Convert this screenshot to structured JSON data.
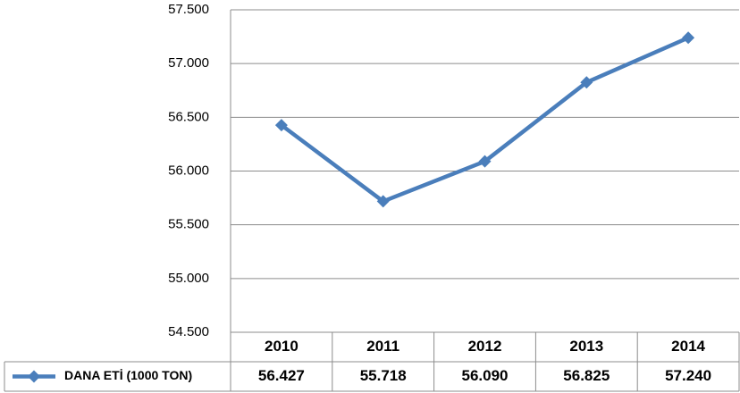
{
  "chart_data": {
    "type": "line",
    "categories": [
      "2010",
      "2011",
      "2012",
      "2013",
      "2014"
    ],
    "series": [
      {
        "name": "DANA ETİ (1000 TON)",
        "color": "#4a7ebb",
        "values": [
          56427,
          55718,
          56090,
          56825,
          57240
        ],
        "value_labels": [
          "56.427",
          "55.718",
          "56.090",
          "56.825",
          "57.240"
        ]
      }
    ],
    "ylim": [
      54500,
      57500
    ],
    "yticks": [
      {
        "value": 54500,
        "label": "54.500"
      },
      {
        "value": 55000,
        "label": "55.000"
      },
      {
        "value": 55500,
        "label": "55.500"
      },
      {
        "value": 56000,
        "label": "56.000"
      },
      {
        "value": 56500,
        "label": "56.500"
      },
      {
        "value": 57000,
        "label": "57.000"
      },
      {
        "value": 57500,
        "label": "57.500"
      }
    ],
    "grid": true,
    "data_table": true
  }
}
